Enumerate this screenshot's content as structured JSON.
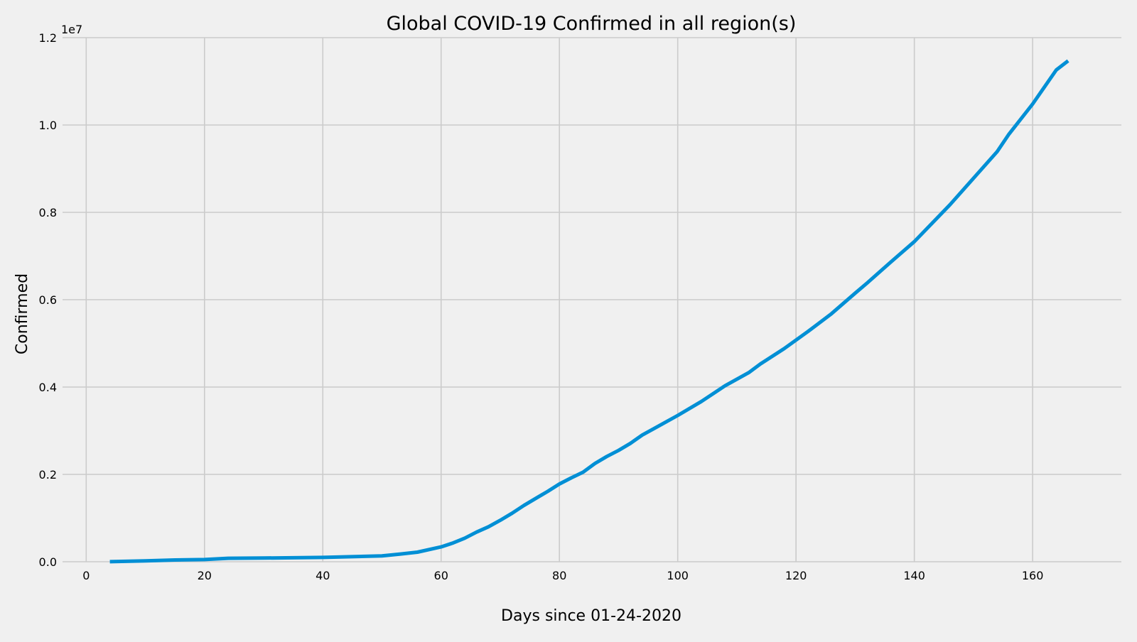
{
  "chart_data": {
    "type": "line",
    "title": "Global COVID-19 Confirmed in all region(s)",
    "xlabel": "Days since 01-24-2020",
    "ylabel": "Confirmed",
    "y_offset_label": "1e7",
    "xlim": [
      -4,
      175
    ],
    "ylim": [
      0,
      12000000
    ],
    "x_ticks": [
      0,
      20,
      40,
      60,
      80,
      100,
      120,
      140,
      160
    ],
    "x_tick_labels": [
      "0",
      "20",
      "40",
      "60",
      "80",
      "100",
      "120",
      "140",
      "160"
    ],
    "y_ticks": [
      0,
      2000000,
      4000000,
      6000000,
      8000000,
      10000000,
      12000000
    ],
    "y_tick_labels": [
      "0.0",
      "0.2",
      "0.4",
      "0.6",
      "0.8",
      "1.0",
      "1.2"
    ],
    "grid": true,
    "line_color": "#008fd5",
    "background_color": "#f0f0f0",
    "grid_color": "#cbcbcb",
    "series": [
      {
        "x": [
          4,
          10,
          15,
          20,
          24,
          30,
          40,
          46,
          50,
          53,
          56,
          60,
          62,
          64,
          66,
          68,
          70,
          72,
          74,
          76,
          78,
          80,
          82,
          84,
          86,
          88,
          90,
          92,
          94,
          96,
          98,
          100,
          104,
          108,
          112,
          114,
          118,
          122,
          126,
          130,
          132,
          136,
          140,
          146,
          150,
          154,
          156,
          160,
          164,
          166
        ],
        "y": [
          2000,
          20000,
          40000,
          50000,
          80000,
          85000,
          100000,
          120000,
          135000,
          175000,
          220000,
          340000,
          430000,
          540000,
          680000,
          800000,
          950000,
          1110000,
          1290000,
          1450000,
          1610000,
          1780000,
          1920000,
          2050000,
          2250000,
          2410000,
          2550000,
          2710000,
          2900000,
          3050000,
          3200000,
          3350000,
          3670000,
          4030000,
          4330000,
          4530000,
          4880000,
          5270000,
          5680000,
          6150000,
          6380000,
          6860000,
          7330000,
          8170000,
          8780000,
          9390000,
          9790000,
          10480000,
          11260000,
          11470000
        ]
      }
    ]
  }
}
